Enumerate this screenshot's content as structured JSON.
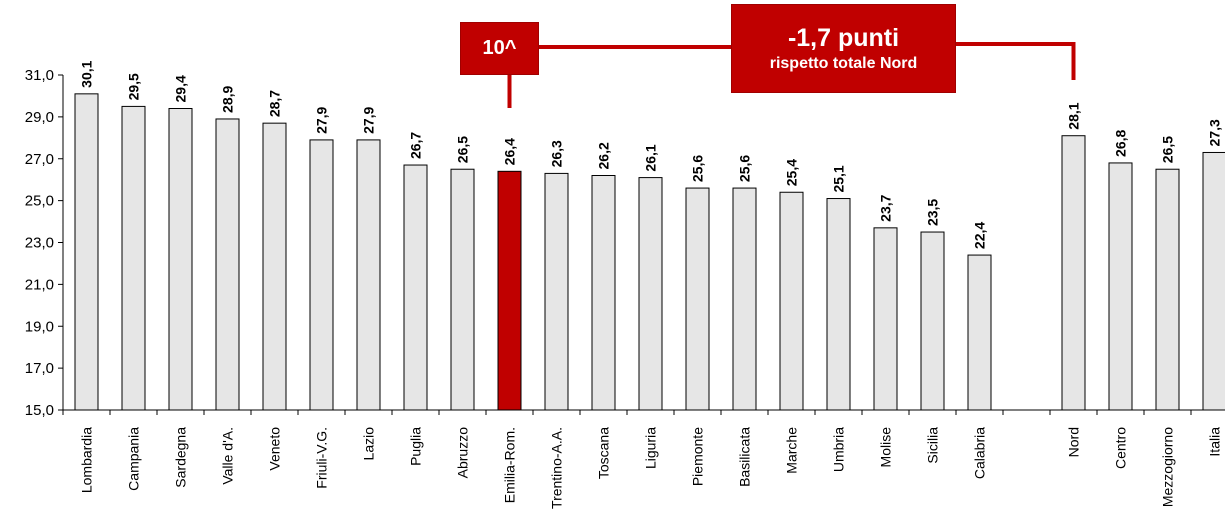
{
  "chart_data": {
    "type": "bar",
    "categories": [
      "Lombardia",
      "Campania",
      "Sardegna",
      "Valle d'A.",
      "Veneto",
      "Friuli-V.G.",
      "Lazio",
      "Puglia",
      "Abruzzo",
      "Emilia-Rom.",
      "Trentino-A.A.",
      "Toscana",
      "Liguria",
      "Piemonte",
      "Basilicata",
      "Marche",
      "Umbria",
      "Molise",
      "Sicilia",
      "Calabria",
      "",
      "Nord",
      "Centro",
      "Mezzogiorno",
      "Italia"
    ],
    "values": [
      30.1,
      29.5,
      29.4,
      28.9,
      28.7,
      27.9,
      27.9,
      26.7,
      26.5,
      26.4,
      26.3,
      26.2,
      26.1,
      25.6,
      25.6,
      25.4,
      25.1,
      23.7,
      23.5,
      22.4,
      null,
      28.1,
      26.8,
      26.5,
      27.3
    ],
    "value_labels": [
      "30,1",
      "29,5",
      "29,4",
      "28,9",
      "28,7",
      "27,9",
      "27,9",
      "26,7",
      "26,5",
      "26,4",
      "26,3",
      "26,2",
      "26,1",
      "25,6",
      "25,6",
      "25,4",
      "25,1",
      "23,7",
      "23,5",
      "22,4",
      "",
      "28,1",
      "26,8",
      "26,5",
      "27,3"
    ],
    "highlight_category": "Emilia-Rom.",
    "ylim": [
      15.0,
      31.0
    ],
    "yticks": [
      "15,0",
      "17,0",
      "19,0",
      "21,0",
      "23,0",
      "25,0",
      "27,0",
      "29,0",
      "31,0"
    ],
    "title": "",
    "xlabel": "",
    "ylabel": "",
    "grid": false,
    "colors": {
      "bar_fill": "#e6e6e6",
      "bar_stroke": "#000000",
      "highlight_fill": "#c00000",
      "callout": "#c00000"
    }
  },
  "callouts": {
    "rank": "10^",
    "diff_main": "-1,7 punti",
    "diff_sub": "rispetto totale Nord"
  }
}
